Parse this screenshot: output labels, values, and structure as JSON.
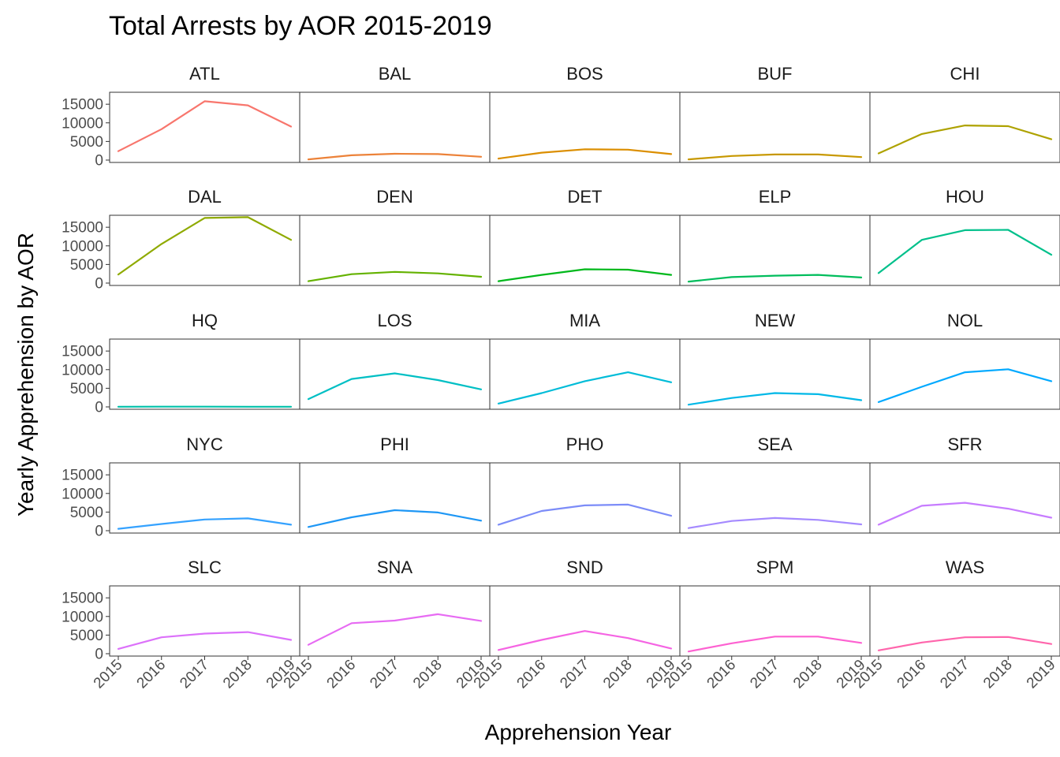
{
  "chart_data": {
    "type": "line",
    "title": "Total Arrests by AOR 2015-2019",
    "xlabel": "Apprehension Year",
    "ylabel": "Yearly Apprehension by AOR",
    "x": [
      2015,
      2016,
      2017,
      2018,
      2019
    ],
    "x_tick_labels": [
      "2015",
      "2016",
      "2017",
      "2018",
      "2019"
    ],
    "y_ticks": [
      0,
      5000,
      10000,
      15000
    ],
    "y_tick_labels": [
      "0",
      "5000",
      "10000",
      "15000"
    ],
    "ylim": [
      0,
      18000
    ],
    "grid": false,
    "legend": "none",
    "facets": [
      {
        "name": "ATL",
        "color": "#F8766D",
        "values": [
          2400,
          8300,
          15800,
          14700,
          9000
        ]
      },
      {
        "name": "BAL",
        "color": "#EC8239",
        "values": [
          200,
          1300,
          1700,
          1600,
          900
        ]
      },
      {
        "name": "BOS",
        "color": "#DB8E00",
        "values": [
          400,
          2000,
          2900,
          2800,
          1600
        ]
      },
      {
        "name": "BUF",
        "color": "#C79800",
        "values": [
          200,
          1100,
          1500,
          1500,
          800
        ]
      },
      {
        "name": "CHI",
        "color": "#AEA200",
        "values": [
          1800,
          7000,
          9300,
          9100,
          5600
        ]
      },
      {
        "name": "DAL",
        "color": "#8FAA00",
        "values": [
          2300,
          10500,
          17500,
          17700,
          11600
        ]
      },
      {
        "name": "DEN",
        "color": "#64B200",
        "values": [
          500,
          2400,
          3000,
          2600,
          1700
        ]
      },
      {
        "name": "DET",
        "color": "#00B81B",
        "values": [
          500,
          2200,
          3700,
          3600,
          2200
        ]
      },
      {
        "name": "ELP",
        "color": "#00BD5C",
        "values": [
          400,
          1600,
          2000,
          2200,
          1500
        ]
      },
      {
        "name": "HOU",
        "color": "#00C08B",
        "values": [
          2700,
          11600,
          14200,
          14300,
          7600
        ]
      },
      {
        "name": "HQ",
        "color": "#00C1AA",
        "values": [
          50,
          60,
          60,
          50,
          40
        ]
      },
      {
        "name": "LOS",
        "color": "#00BFC4",
        "values": [
          2100,
          7500,
          9000,
          7200,
          4700
        ]
      },
      {
        "name": "MIA",
        "color": "#00BCD8",
        "values": [
          900,
          3700,
          6900,
          9300,
          6600
        ]
      },
      {
        "name": "NEW",
        "color": "#00B8E7",
        "values": [
          600,
          2400,
          3700,
          3400,
          1800
        ]
      },
      {
        "name": "NOL",
        "color": "#00A9FF",
        "values": [
          1300,
          5400,
          9300,
          10100,
          6900
        ]
      },
      {
        "name": "NYC",
        "color": "#35A2FF",
        "values": [
          500,
          1800,
          3000,
          3300,
          1600
        ]
      },
      {
        "name": "PHI",
        "color": "#1E97F5",
        "values": [
          1000,
          3600,
          5500,
          4900,
          2700
        ]
      },
      {
        "name": "PHO",
        "color": "#7C8CF8",
        "values": [
          1600,
          5300,
          6800,
          7000,
          4000
        ]
      },
      {
        "name": "SEA",
        "color": "#A58AFF",
        "values": [
          700,
          2600,
          3400,
          2900,
          1700
        ]
      },
      {
        "name": "SFR",
        "color": "#C77CFF",
        "values": [
          1600,
          6700,
          7500,
          5900,
          3500
        ]
      },
      {
        "name": "SLC",
        "color": "#DC71FA",
        "values": [
          1300,
          4400,
          5400,
          5800,
          3700
        ]
      },
      {
        "name": "SNA",
        "color": "#E76BF3",
        "values": [
          2400,
          8200,
          8900,
          10600,
          8800
        ]
      },
      {
        "name": "SND",
        "color": "#F564E3",
        "values": [
          1000,
          3700,
          6100,
          4200,
          1400
        ]
      },
      {
        "name": "SPM",
        "color": "#FD61D1",
        "values": [
          600,
          2800,
          4600,
          4600,
          2900
        ]
      },
      {
        "name": "WAS",
        "color": "#FF65AC",
        "values": [
          900,
          3000,
          4400,
          4500,
          2600
        ]
      }
    ]
  }
}
